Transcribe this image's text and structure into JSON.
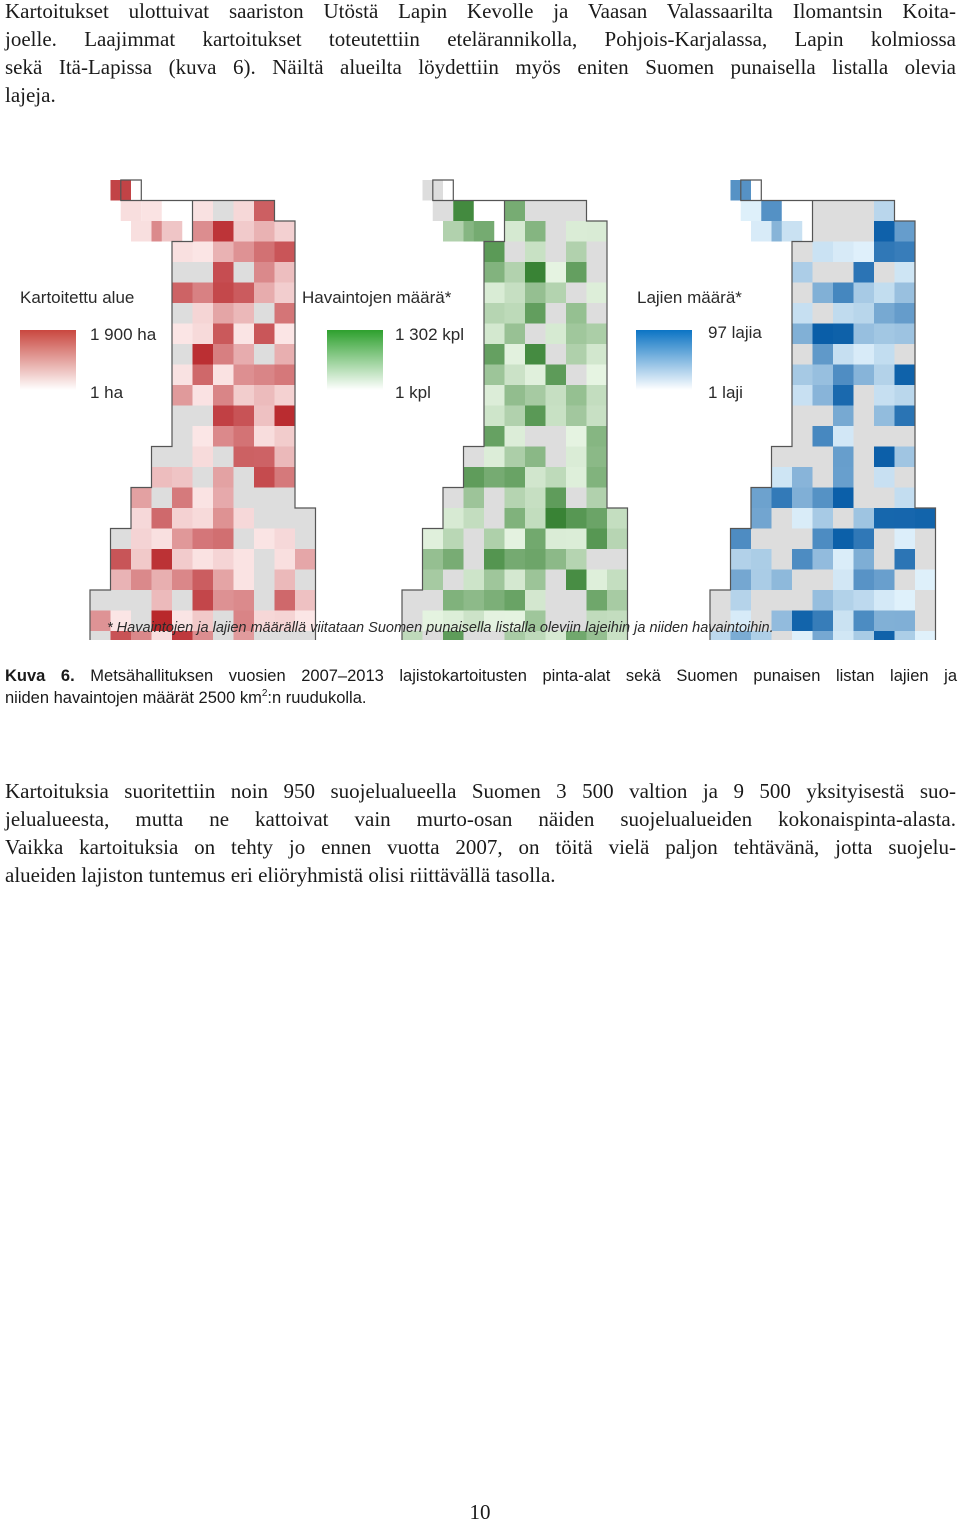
{
  "intro_paragraph": {
    "lines": [
      "Kartoitukset ulottuivat saariston Utöstä Lapin Kevolle ja Vaasan Valassaarilta Ilomantsin Koita-",
      "joelle. Laajimmat kartoitukset toteutettiin etelärannikolla, Pohjois-Karjalassa, Lapin kolmiossa",
      "sekä Itä-Lapissa (kuva 6). Näiltä alueilta löydettiin myös eniten Suomen punaisella listalla olevia",
      "lajeja."
    ]
  },
  "figure": {
    "maps": [
      {
        "legend_title": "Kartoitettu alue",
        "legend_max": "1 900 ha",
        "legend_min": "1 ha",
        "color_dark": "#b8262a",
        "color_light": "#fbe6e6"
      },
      {
        "legend_title": "Havaintojen määrä*",
        "legend_max": "1 302 kpl",
        "legend_min": "1 kpl",
        "color_dark": "#2f7d2b",
        "color_light": "#e6f4e2"
      },
      {
        "legend_title": "Lajien määrä*",
        "legend_max": "97 lajia",
        "legend_min": "1 laji",
        "color_dark": "#0a5ea8",
        "color_light": "#e0f1fb"
      }
    ],
    "no_data_color": "#dddddd",
    "footnote": "* Havaintojen ja lajien määrällä viitataan Suomen punaisella listalla oleviin lajeihin ja niiden havaintoihin."
  },
  "caption": {
    "label": "Kuva 6.",
    "line1_text": " Metsähallituksen vuosien 2007–2013 lajistokartoitusten pinta-alat sekä Suomen punaisen listan lajien ja",
    "line2_before": "niiden havaintojen määrät 2500 km",
    "line2_sup": "2",
    "line2_after": ":n ruudukolla."
  },
  "body_paragraph": {
    "lines": [
      "Kartoituksia suoritettiin noin 950 suojelualueella Suomen 3 500 valtion ja 9 500 yksityisestä suo-",
      "jelualueesta, mutta ne kattoivat vain murto-osan näiden suojelualueiden kokonaispinta-alasta.",
      "Vaikka kartoituksia on tehty jo ennen vuotta 2007, on töitä vielä paljon tehtävänä, jotta suojelu-",
      "alueiden lajiston tuntemus eri eliöryhmistä olisi riittävällä tasolla."
    ]
  },
  "page_number": "10"
}
